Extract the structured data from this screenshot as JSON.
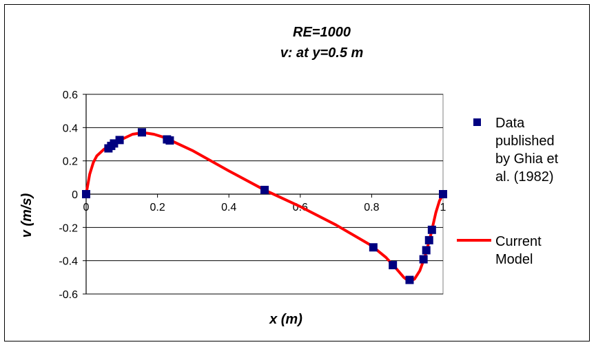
{
  "chart_data": {
    "type": "scatter",
    "title": "RE=1000",
    "subtitle": "v: at y=0.5 m",
    "xlabel": "x (m)",
    "ylabel": "v (m/s)",
    "xlim": [
      0,
      1
    ],
    "ylim": [
      -0.6,
      0.6
    ],
    "x_ticks": [
      "0",
      "0.2",
      "0.4",
      "0.6",
      "0.8",
      "1"
    ],
    "y_ticks": [
      "0.6",
      "0.4",
      "0.2",
      "0",
      "-0.2",
      "-0.4",
      "-0.6"
    ],
    "grid": "horizontal",
    "legend_position": "right",
    "series": [
      {
        "name": "Data published by Ghia et al. (1982)",
        "kind": "scatter",
        "marker": "square",
        "color": "#000080",
        "x": [
          0.0,
          0.0625,
          0.0703,
          0.0781,
          0.0938,
          0.1563,
          0.2266,
          0.2344,
          0.5,
          0.8047,
          0.8594,
          0.9063,
          0.9453,
          0.9531,
          0.9609,
          0.9688,
          1.0
        ],
        "y": [
          0.0,
          0.2752,
          0.29,
          0.3047,
          0.3253,
          0.3713,
          0.329,
          0.3227,
          0.0253,
          -0.3197,
          -0.4266,
          -0.5155,
          -0.3915,
          -0.3371,
          -0.2767,
          -0.2143,
          0.0
        ]
      },
      {
        "name": "Current Model",
        "kind": "line",
        "color": "#ff0000",
        "x": [
          0.0,
          0.01,
          0.02,
          0.03,
          0.05,
          0.07,
          0.1,
          0.13,
          0.16,
          0.19,
          0.22,
          0.25,
          0.3,
          0.4,
          0.5,
          0.6,
          0.7,
          0.8,
          0.84,
          0.87,
          0.89,
          0.905,
          0.92,
          0.935,
          0.95,
          0.965,
          0.98,
          0.99,
          1.0
        ],
        "y": [
          0.0,
          0.12,
          0.19,
          0.23,
          0.27,
          0.295,
          0.33,
          0.36,
          0.37,
          0.36,
          0.34,
          0.31,
          0.26,
          0.14,
          0.025,
          -0.075,
          -0.185,
          -0.31,
          -0.38,
          -0.45,
          -0.5,
          -0.525,
          -0.51,
          -0.46,
          -0.37,
          -0.25,
          -0.11,
          -0.04,
          0.0
        ]
      }
    ],
    "legend": [
      {
        "lines": [
          "Data",
          "published",
          "by Ghia et",
          "al. (1982)"
        ]
      },
      {
        "lines": [
          "Current",
          "Model"
        ]
      }
    ]
  }
}
